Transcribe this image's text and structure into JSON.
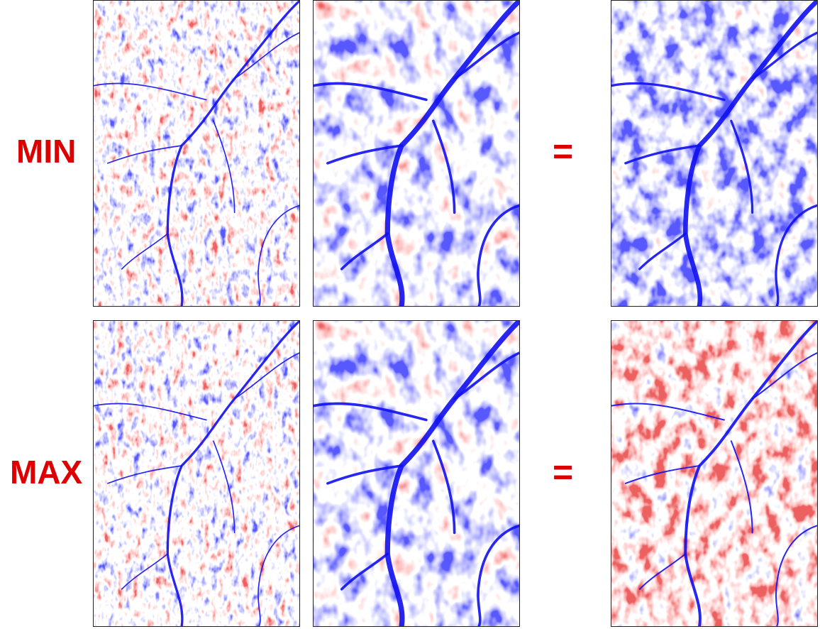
{
  "rows": [
    {
      "label": "MIN",
      "operator": "="
    },
    {
      "label": "MAX",
      "operator": "="
    }
  ],
  "colors": {
    "label": "#dd0000",
    "low": "#1a1aff",
    "mid": "#ffffff",
    "high": "#d92020"
  }
}
